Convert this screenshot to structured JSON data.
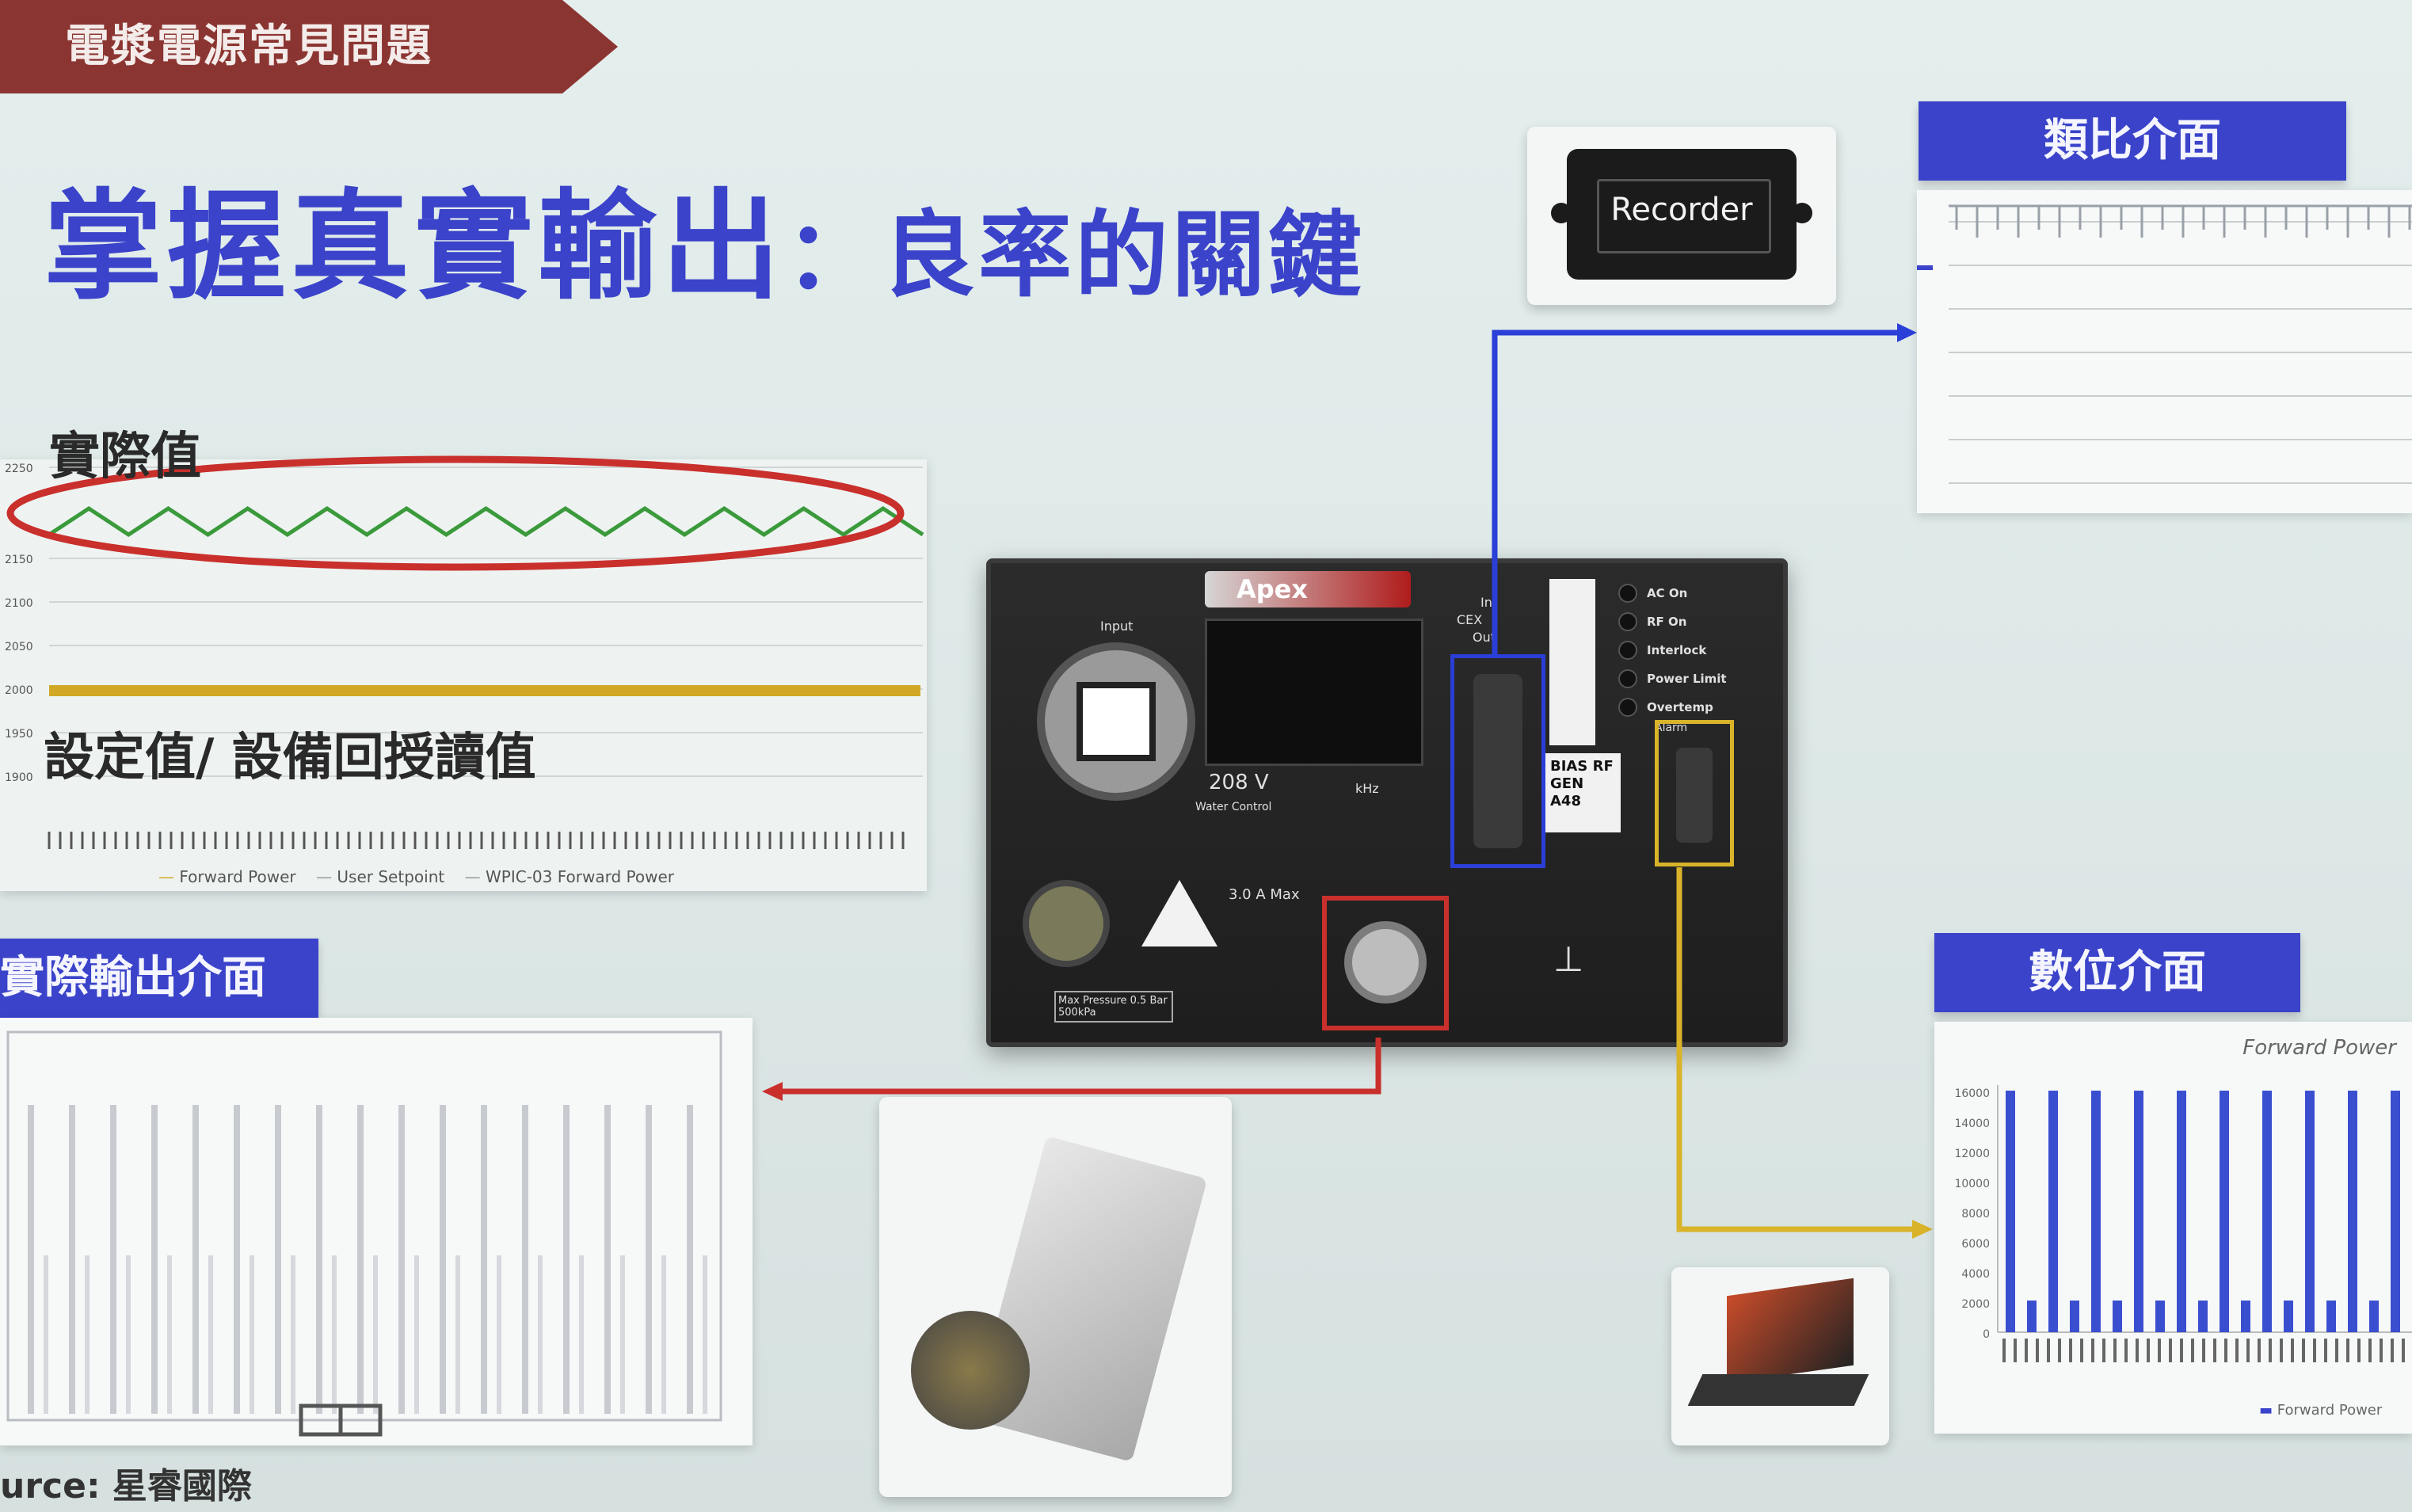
{
  "banner": {
    "text": "電漿電源常見問題"
  },
  "title": {
    "main": "掌握真實輸出",
    "sub": "：良率的關鍵"
  },
  "labels": {
    "actual_value": "實際值",
    "setpoint_value": "設定值/ 設備回授讀值",
    "actual_output_interface": "實際輸出介面",
    "analog_interface": "類比介面",
    "digital_interface": "數位介面"
  },
  "recorder": {
    "label": "Recorder"
  },
  "trend_chart": {
    "y_ticks": [
      "2250",
      "2150",
      "2100",
      "2050",
      "2000",
      "1950",
      "1900"
    ],
    "legend": [
      "Forward Power",
      "User Setpoint",
      "WPIC-03 Forward Power"
    ]
  },
  "digital_chart": {
    "title": "Forward Power",
    "y_ticks": [
      "16000",
      "14000",
      "12000",
      "10000",
      "8000",
      "6000",
      "4000",
      "2000",
      "0"
    ],
    "legend": "Forward Power"
  },
  "device": {
    "brand": "Apex",
    "input_label": "Input",
    "voltage": "208 V",
    "water_label": "Water Control",
    "cex_in": "In",
    "cex": "CEX",
    "cex_out": "Out",
    "status_leds": [
      "AC On",
      "RF On",
      "Interlock",
      "Power Limit",
      "Overtemp"
    ],
    "alarm": "Alarm",
    "model": "BIAS RF GEN A48",
    "current": "3.0 A Max",
    "pressure": "Max Pressure 0.5 Bar 500kPa",
    "freq": "kHz"
  },
  "source": {
    "text": "urce: 星睿國際"
  },
  "colors": {
    "banner": "#8b3532",
    "title": "#3a43c9",
    "blue_link": "#2a3ed8",
    "red_link": "#c9302c",
    "yellow_link": "#d9b32a"
  }
}
